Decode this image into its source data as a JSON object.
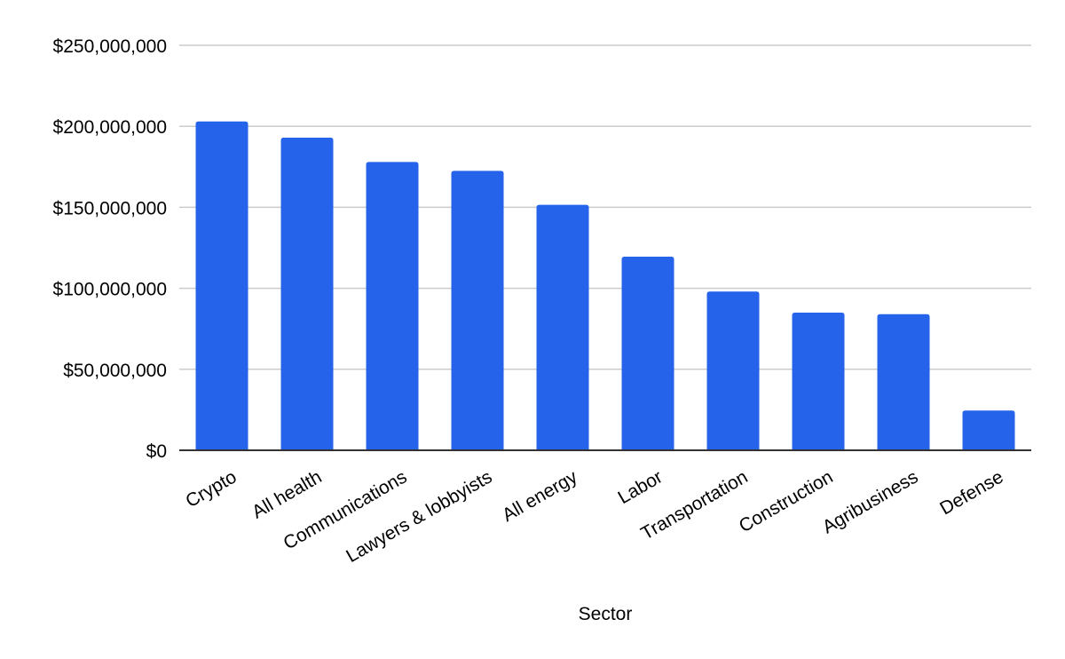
{
  "chart_data": {
    "type": "bar",
    "title": "",
    "xlabel": "Sector",
    "ylabel": "",
    "categories": [
      "Crypto",
      "All health",
      "Communications",
      "Lawyers & lobbyists",
      "All energy",
      "Labor",
      "Transportation",
      "Construction",
      "Agribusiness",
      "Defense"
    ],
    "values": [
      203000000,
      193000000,
      178000000,
      172500000,
      151500000,
      119500000,
      98000000,
      85000000,
      84000000,
      24500000
    ],
    "ylim": [
      0,
      250000000
    ],
    "yticks": [
      0,
      50000000,
      100000000,
      150000000,
      200000000,
      250000000
    ],
    "ytick_labels": [
      "$0",
      "$50,000,000",
      "$100,000,000",
      "$150,000,000",
      "$200,000,000",
      "$250,000,000"
    ],
    "bar_color": "#2563eb",
    "grid": true,
    "legend": "none"
  }
}
